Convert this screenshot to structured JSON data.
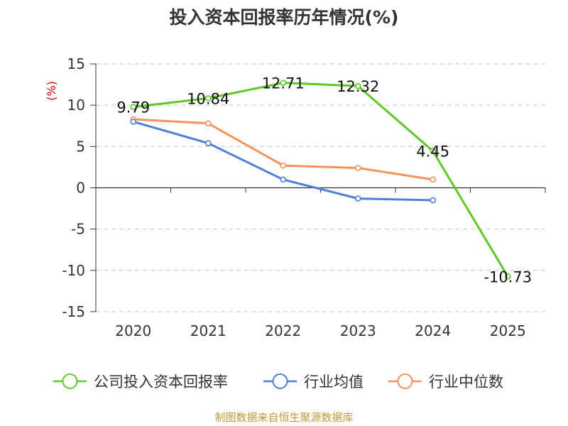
{
  "chart_data": {
    "type": "line",
    "title": "投入资本回报率历年情况(%)",
    "ylabel": "(%)",
    "categories": [
      "2020",
      "2021",
      "2022",
      "2023",
      "2024",
      "2025"
    ],
    "ylim": [
      -15,
      15
    ],
    "yticks": [
      15,
      10,
      5,
      0,
      -5,
      -10,
      -15
    ],
    "grid": true,
    "legend_position": "bottom",
    "series": [
      {
        "name": "公司投入资本回报率",
        "color": "#5cc926",
        "values": [
          9.79,
          10.84,
          12.71,
          12.32,
          4.45,
          -10.73
        ],
        "labels": [
          "9.79",
          "10.84",
          "12.71",
          "12.32",
          "4.45",
          "-10.73"
        ],
        "show_labels": true
      },
      {
        "name": "行业均值",
        "color": "#4f7fdb",
        "values": [
          8.0,
          5.4,
          1.0,
          -1.3,
          -1.5,
          null
        ],
        "show_labels": false
      },
      {
        "name": "行业中位数",
        "color": "#f7925a",
        "values": [
          8.3,
          7.8,
          2.7,
          2.4,
          1.0,
          null
        ],
        "show_labels": false
      }
    ]
  },
  "source": "制图数据来自恒生聚源数据库"
}
